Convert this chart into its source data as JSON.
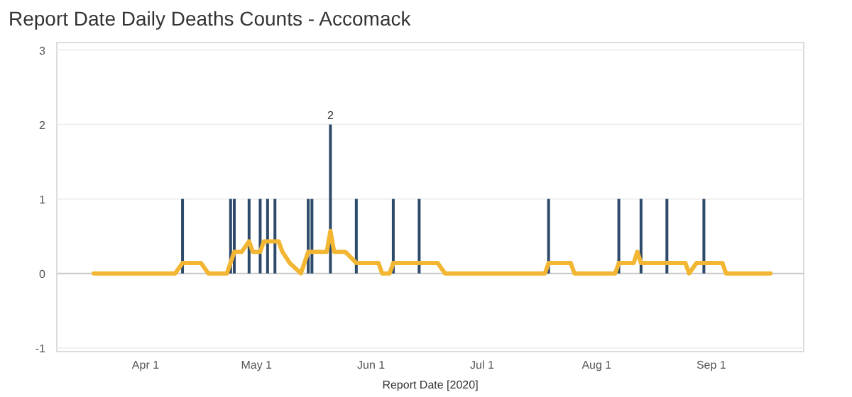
{
  "chart_data": {
    "type": "bar",
    "title": "Report Date Daily Deaths Counts - Accomack",
    "xlabel": "Report Date [2020]",
    "xlim": [
      "2020-03-08",
      "2020-09-26"
    ],
    "xticks": [
      {
        "value": "2020-04-01",
        "label": "Apr 1"
      },
      {
        "value": "2020-05-01",
        "label": "May 1"
      },
      {
        "value": "2020-06-01",
        "label": "Jun 1"
      },
      {
        "value": "2020-07-01",
        "label": "Jul 1"
      },
      {
        "value": "2020-08-01",
        "label": "Aug 1"
      },
      {
        "value": "2020-09-01",
        "label": "Sep 1"
      }
    ],
    "ylim": [
      -1.05,
      3.1
    ],
    "yticks": [
      -1,
      0,
      1,
      2,
      3
    ],
    "grid": "y",
    "series": [
      {
        "color": "#2e4a6b",
        "x": [
          "2020-04-11",
          "2020-04-24",
          "2020-04-25",
          "2020-04-29",
          "2020-05-02",
          "2020-05-04",
          "2020-05-06",
          "2020-05-15",
          "2020-05-16",
          "2020-05-21",
          "2020-05-28",
          "2020-06-07",
          "2020-06-14",
          "2020-07-19",
          "2020-08-07",
          "2020-08-13",
          "2020-08-20",
          "2020-08-30"
        ],
        "values": [
          1,
          1,
          1,
          1,
          1,
          1,
          1,
          1,
          1,
          2,
          1,
          1,
          1,
          1,
          1,
          1,
          1,
          1
        ],
        "value_labels": [
          null,
          null,
          null,
          null,
          null,
          null,
          null,
          null,
          null,
          "2",
          null,
          null,
          null,
          null,
          null,
          null,
          null,
          null
        ]
      },
      {
        "type": "line",
        "color": "#f2b632",
        "line_style": "solid",
        "x": [
          "2020-03-18",
          "2020-04-09",
          "2020-04-11",
          "2020-04-16",
          "2020-04-18",
          "2020-04-23",
          "2020-04-25",
          "2020-04-27",
          "2020-04-29",
          "2020-04-30",
          "2020-05-02",
          "2020-05-03",
          "2020-05-07",
          "2020-05-08",
          "2020-05-10",
          "2020-05-13",
          "2020-05-15",
          "2020-05-20",
          "2020-05-21",
          "2020-05-22",
          "2020-05-25",
          "2020-05-28",
          "2020-06-03",
          "2020-06-04",
          "2020-06-06",
          "2020-06-07",
          "2020-06-19",
          "2020-06-21",
          "2020-07-18",
          "2020-07-19",
          "2020-07-25",
          "2020-07-26",
          "2020-08-06",
          "2020-08-07",
          "2020-08-11",
          "2020-08-12",
          "2020-08-13",
          "2020-08-25",
          "2020-08-26",
          "2020-08-28",
          "2020-09-04",
          "2020-09-05",
          "2020-09-17"
        ],
        "values": [
          0,
          0,
          0.14,
          0.14,
          0,
          0,
          0.29,
          0.29,
          0.43,
          0.29,
          0.29,
          0.43,
          0.43,
          0.29,
          0.14,
          0,
          0.29,
          0.29,
          0.57,
          0.29,
          0.29,
          0.14,
          0.14,
          0,
          0,
          0.14,
          0.14,
          0,
          0,
          0.14,
          0.14,
          0,
          0,
          0.14,
          0.14,
          0.29,
          0.14,
          0.14,
          0,
          0.14,
          0.14,
          0,
          0
        ]
      }
    ]
  }
}
